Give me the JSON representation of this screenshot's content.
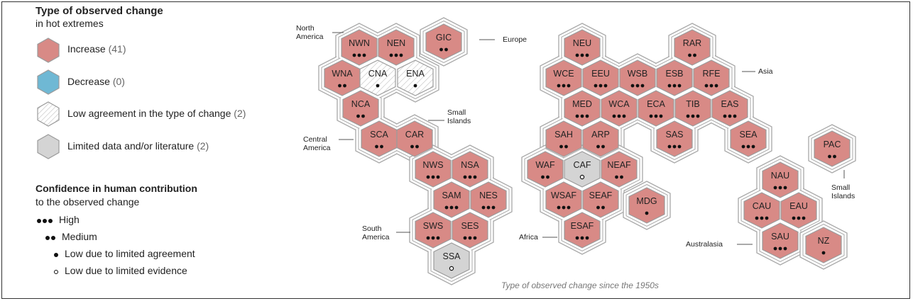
{
  "colors": {
    "increase": "#d88a86",
    "decrease": "#6fb8d4",
    "low_agreement": "#ffffff",
    "limited_data": "#d4d4d4",
    "outline": "#9b9b9b",
    "group_outline": "#a8a8a8"
  },
  "legend": {
    "title": "Type of observed change",
    "subtitle": "in hot extremes",
    "items": [
      {
        "label": "Increase",
        "count": "(41)",
        "fill": "increase"
      },
      {
        "label": "Decrease",
        "count": "(0)",
        "fill": "decrease"
      },
      {
        "label": "Low agreement in the type of change",
        "count": "(2)",
        "fill": "low_agreement"
      },
      {
        "label": "Limited data and/or literature",
        "count": "(2)",
        "fill": "limited_data"
      }
    ]
  },
  "confidence": {
    "title": "Confidence in human contribution",
    "subtitle": "to the observed change",
    "items": [
      {
        "label": "High",
        "marker": "high"
      },
      {
        "label": "Medium",
        "marker": "medium"
      },
      {
        "label": "Low due to limited agreement",
        "marker": "low_agreement"
      },
      {
        "label": "Low due to limited evidence",
        "marker": "low_evidence"
      }
    ]
  },
  "region_labels": [
    {
      "text": [
        "North",
        "America"
      ]
    },
    {
      "text": [
        "Europe"
      ]
    },
    {
      "text": [
        "Asia"
      ]
    },
    {
      "text": [
        "Small",
        "Islands"
      ]
    },
    {
      "text": [
        "Central",
        "America"
      ]
    },
    {
      "text": [
        "South",
        "America"
      ]
    },
    {
      "text": [
        "Africa"
      ]
    },
    {
      "text": [
        "Australasia"
      ]
    },
    {
      "text": [
        "Small",
        "Islands"
      ]
    }
  ],
  "caption": "Type of observed change since the 1950s",
  "hexagons": [
    {
      "code": "NWN",
      "type": "increase",
      "confidence": 3
    },
    {
      "code": "NEN",
      "type": "increase",
      "confidence": 3
    },
    {
      "code": "GIC",
      "type": "increase",
      "confidence": 2
    },
    {
      "code": "WNA",
      "type": "increase",
      "confidence": 2
    },
    {
      "code": "CNA",
      "type": "low_agreement",
      "confidence": 1
    },
    {
      "code": "ENA",
      "type": "low_agreement",
      "confidence": 1
    },
    {
      "code": "NCA",
      "type": "increase",
      "confidence": 2
    },
    {
      "code": "SCA",
      "type": "increase",
      "confidence": 2
    },
    {
      "code": "CAR",
      "type": "increase",
      "confidence": 2
    },
    {
      "code": "NWS",
      "type": "increase",
      "confidence": 3
    },
    {
      "code": "NSA",
      "type": "increase",
      "confidence": 3
    },
    {
      "code": "SAM",
      "type": "increase",
      "confidence": 3
    },
    {
      "code": "NES",
      "type": "increase",
      "confidence": 3
    },
    {
      "code": "SWS",
      "type": "increase",
      "confidence": 3
    },
    {
      "code": "SES",
      "type": "increase",
      "confidence": 3
    },
    {
      "code": "SSA",
      "type": "limited_data",
      "confidence": 0
    },
    {
      "code": "NEU",
      "type": "increase",
      "confidence": 3
    },
    {
      "code": "RAR",
      "type": "increase",
      "confidence": 2
    },
    {
      "code": "WCE",
      "type": "increase",
      "confidence": 3
    },
    {
      "code": "EEU",
      "type": "increase",
      "confidence": 3
    },
    {
      "code": "WSB",
      "type": "increase",
      "confidence": 3
    },
    {
      "code": "ESB",
      "type": "increase",
      "confidence": 3
    },
    {
      "code": "RFE",
      "type": "increase",
      "confidence": 3
    },
    {
      "code": "MED",
      "type": "increase",
      "confidence": 3
    },
    {
      "code": "WCA",
      "type": "increase",
      "confidence": 3
    },
    {
      "code": "ECA",
      "type": "increase",
      "confidence": 3
    },
    {
      "code": "TIB",
      "type": "increase",
      "confidence": 3
    },
    {
      "code": "EAS",
      "type": "increase",
      "confidence": 3
    },
    {
      "code": "SAH",
      "type": "increase",
      "confidence": 2
    },
    {
      "code": "ARP",
      "type": "increase",
      "confidence": 2
    },
    {
      "code": "SAS",
      "type": "increase",
      "confidence": 3
    },
    {
      "code": "SEA",
      "type": "increase",
      "confidence": 3
    },
    {
      "code": "WAF",
      "type": "increase",
      "confidence": 2
    },
    {
      "code": "CAF",
      "type": "limited_data",
      "confidence": 0
    },
    {
      "code": "NEAF",
      "type": "increase",
      "confidence": 2
    },
    {
      "code": "WSAF",
      "type": "increase",
      "confidence": 3
    },
    {
      "code": "SEAF",
      "type": "increase",
      "confidence": 2
    },
    {
      "code": "MDG",
      "type": "increase",
      "confidence": 1
    },
    {
      "code": "ESAF",
      "type": "increase",
      "confidence": 3
    },
    {
      "code": "PAC",
      "type": "increase",
      "confidence": 2
    },
    {
      "code": "NAU",
      "type": "increase",
      "confidence": 3
    },
    {
      "code": "CAU",
      "type": "increase",
      "confidence": 3
    },
    {
      "code": "EAU",
      "type": "increase",
      "confidence": 3
    },
    {
      "code": "SAU",
      "type": "increase",
      "confidence": 3
    },
    {
      "code": "NZ",
      "type": "increase",
      "confidence": 1
    }
  ]
}
